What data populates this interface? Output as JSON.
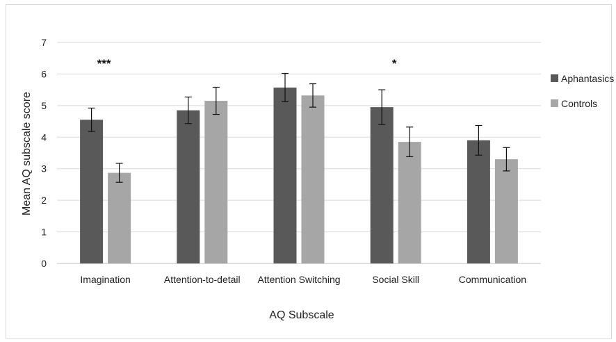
{
  "chart_data": {
    "type": "bar",
    "title": "",
    "xlabel": "AQ Subscale",
    "ylabel": "Mean AQ subscale score",
    "ylim": [
      0,
      7
    ],
    "yticks": [
      0,
      1,
      2,
      3,
      4,
      5,
      6,
      7
    ],
    "grid": true,
    "legend_position": "right",
    "categories": [
      "Imagination",
      "Attention-to-detail",
      "Attention Switching",
      "Social Skill",
      "Communication"
    ],
    "series": [
      {
        "name": "Aphantasics",
        "color": "#595959",
        "values": [
          4.55,
          4.85,
          5.57,
          4.95,
          3.9
        ],
        "error": [
          0.37,
          0.42,
          0.45,
          0.55,
          0.47
        ]
      },
      {
        "name": "Controls",
        "color": "#a6a6a6",
        "values": [
          2.87,
          5.15,
          5.32,
          3.85,
          3.3
        ],
        "error": [
          0.3,
          0.43,
          0.37,
          0.47,
          0.37
        ]
      }
    ],
    "annotations": [
      {
        "category": "Imagination",
        "text": "***"
      },
      {
        "category": "Social Skill",
        "text": "*"
      }
    ]
  }
}
